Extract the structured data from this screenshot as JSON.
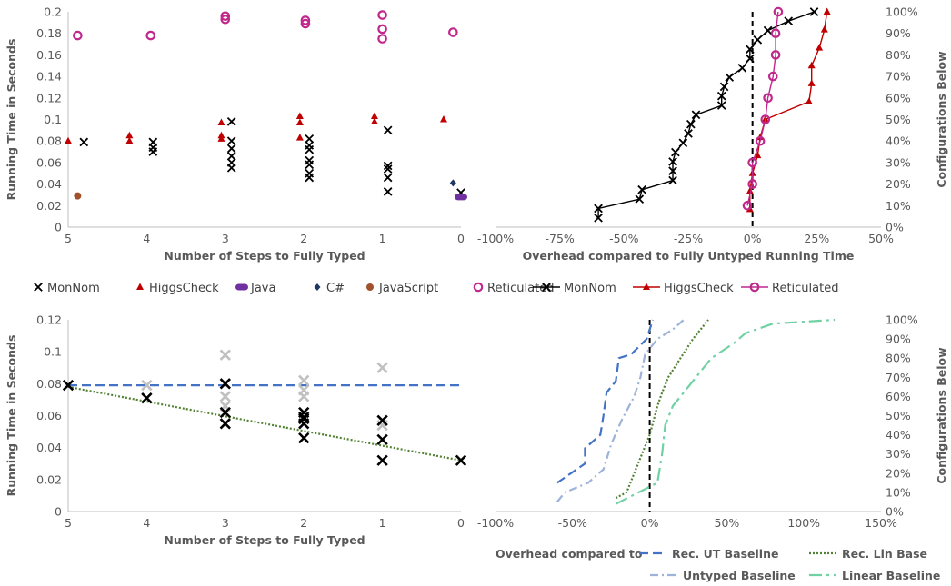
{
  "chart_data": [
    {
      "id": "scatter-top",
      "type": "scatter",
      "xlabel": "Number of Steps to Fully Typed",
      "ylabel": "Running Time in Seconds",
      "xlim": [
        5,
        0
      ],
      "ylim": [
        0,
        0.2
      ],
      "xticks": [
        "5",
        "4",
        "3",
        "2",
        "1",
        "0"
      ],
      "yticks": [
        "0",
        "0.02",
        "0.04",
        "0.06",
        "0.08",
        "0.1",
        "0.12",
        "0.14",
        "0.16",
        "0.18",
        "0.2"
      ],
      "legend_position": "bottom",
      "series": [
        {
          "name": "MonNom",
          "color": "#000000",
          "marker": "x",
          "points": [
            [
              4.8,
              0.079
            ],
            [
              3.92,
              0.079
            ],
            [
              3.92,
              0.074
            ],
            [
              3.92,
              0.07
            ],
            [
              2.92,
              0.098
            ],
            [
              2.92,
              0.08
            ],
            [
              2.92,
              0.073
            ],
            [
              2.92,
              0.066
            ],
            [
              2.92,
              0.06
            ],
            [
              2.92,
              0.055
            ],
            [
              1.93,
              0.082
            ],
            [
              1.93,
              0.076
            ],
            [
              1.93,
              0.072
            ],
            [
              1.93,
              0.062
            ],
            [
              1.93,
              0.058
            ],
            [
              1.93,
              0.05
            ],
            [
              1.93,
              0.046
            ],
            [
              0.93,
              0.09
            ],
            [
              0.93,
              0.057
            ],
            [
              0.93,
              0.054
            ],
            [
              0.93,
              0.046
            ],
            [
              0.93,
              0.033
            ],
            [
              0.0,
              0.032
            ]
          ]
        },
        {
          "name": "HiggsCheck",
          "color": "#c00000",
          "marker": "triangle",
          "points": [
            [
              5.0,
              0.08
            ],
            [
              4.22,
              0.085
            ],
            [
              4.22,
              0.08
            ],
            [
              3.05,
              0.097
            ],
            [
              3.05,
              0.085
            ],
            [
              3.05,
              0.082
            ],
            [
              2.05,
              0.103
            ],
            [
              2.05,
              0.097
            ],
            [
              2.05,
              0.083
            ],
            [
              1.1,
              0.103
            ],
            [
              1.1,
              0.098
            ],
            [
              0.22,
              0.1
            ]
          ]
        },
        {
          "name": "Java",
          "color": "#7030a0",
          "marker": "pill",
          "points": [
            [
              0.0,
              0.028
            ]
          ]
        },
        {
          "name": "C#",
          "color": "#203864",
          "marker": "diamond",
          "points": [
            [
              0.1,
              0.041
            ]
          ]
        },
        {
          "name": "JavaScript",
          "color": "#a0522d",
          "marker": "dot",
          "points": [
            [
              4.88,
              0.029
            ]
          ]
        },
        {
          "name": "Reticulated",
          "color": "#c0288c",
          "marker": "ring",
          "points": [
            [
              4.88,
              0.178
            ],
            [
              3.95,
              0.178
            ],
            [
              3.0,
              0.196
            ],
            [
              3.0,
              0.193
            ],
            [
              1.98,
              0.192
            ],
            [
              1.98,
              0.189
            ],
            [
              1.0,
              0.197
            ],
            [
              1.0,
              0.184
            ],
            [
              1.0,
              0.175
            ],
            [
              0.1,
              0.181
            ]
          ]
        }
      ]
    },
    {
      "id": "cdf-top",
      "type": "line",
      "xlabel": "Overhead compared to Fully Untyped Running Time",
      "ylabel": "Configurations Below",
      "xlim": [
        -100,
        50
      ],
      "ylim": [
        0,
        100
      ],
      "xticks": [
        "-100%",
        "-75%",
        "-50%",
        "-25%",
        "0%",
        "25%",
        "50%"
      ],
      "yticks": [
        "0%",
        "10%",
        "20%",
        "30%",
        "40%",
        "50%",
        "60%",
        "70%",
        "80%",
        "90%",
        "100%"
      ],
      "legend_position": "bottom",
      "series": [
        {
          "name": "MonNom",
          "color": "#000000",
          "marker": "x",
          "points": [
            [
              -60,
              4.3
            ],
            [
              -60,
              8.7
            ],
            [
              -44,
              13
            ],
            [
              -43,
              17.4
            ],
            [
              -31,
              21.7
            ],
            [
              -31,
              26.1
            ],
            [
              -31,
              30.4
            ],
            [
              -30,
              34.8
            ],
            [
              -27,
              39.1
            ],
            [
              -25,
              43.5
            ],
            [
              -24,
              47.8
            ],
            [
              -22,
              52.2
            ],
            [
              -12,
              56.5
            ],
            [
              -12,
              60.9
            ],
            [
              -11,
              65.2
            ],
            [
              -9,
              69.6
            ],
            [
              -4,
              73.9
            ],
            [
              -1,
              78.3
            ],
            [
              -1,
              82.6
            ],
            [
              2,
              87
            ],
            [
              6,
              91.3
            ],
            [
              14,
              95.7
            ],
            [
              24,
              100
            ]
          ]
        },
        {
          "name": "HiggsCheck",
          "color": "#c00000",
          "marker": "triangle",
          "points": [
            [
              -1,
              8.3
            ],
            [
              -1,
              16.7
            ],
            [
              0,
              25
            ],
            [
              2,
              33.3
            ],
            [
              3,
              41.7
            ],
            [
              5,
              50
            ],
            [
              22,
              58.3
            ],
            [
              23,
              66.7
            ],
            [
              23,
              75
            ],
            [
              26,
              83.3
            ],
            [
              28,
              91.7
            ],
            [
              29,
              100
            ]
          ]
        },
        {
          "name": "Reticulated",
          "color": "#c0288c",
          "marker": "ring",
          "points": [
            [
              -2,
              10
            ],
            [
              0,
              20
            ],
            [
              0,
              30
            ],
            [
              3,
              40
            ],
            [
              5,
              50
            ],
            [
              6,
              60
            ],
            [
              8,
              70
            ],
            [
              9,
              80
            ],
            [
              9,
              90
            ],
            [
              10,
              100
            ]
          ]
        }
      ]
    },
    {
      "id": "fit-bottom",
      "type": "scatter",
      "xlabel": "Number of Steps to Fully Typed",
      "ylabel": "Running Time in Seconds",
      "xlim": [
        5,
        0
      ],
      "ylim": [
        0,
        0.12
      ],
      "xticks": [
        "5",
        "4",
        "3",
        "2",
        "1",
        "0"
      ],
      "yticks": [
        "0",
        "0.02",
        "0.04",
        "0.06",
        "0.08",
        "0.1",
        "0.12"
      ],
      "series": [
        {
          "name": "",
          "color": "#c0c0c0",
          "marker": "x",
          "points": [
            [
              4,
              0.079
            ],
            [
              3,
              0.098
            ],
            [
              3,
              0.08
            ],
            [
              3,
              0.072
            ],
            [
              3,
              0.066
            ],
            [
              2,
              0.082
            ],
            [
              2,
              0.076
            ],
            [
              2,
              0.072
            ],
            [
              1,
              0.09
            ],
            [
              1,
              0.057
            ],
            [
              1,
              0.054
            ]
          ]
        },
        {
          "name": "",
          "color": "#000000",
          "marker": "x",
          "points": [
            [
              5,
              0.079
            ],
            [
              4,
              0.071
            ],
            [
              3,
              0.08
            ],
            [
              3,
              0.062
            ],
            [
              3,
              0.055
            ],
            [
              2,
              0.062
            ],
            [
              2,
              0.059
            ],
            [
              2,
              0.058
            ],
            [
              2,
              0.055
            ],
            [
              2,
              0.046
            ],
            [
              1,
              0.057
            ],
            [
              1,
              0.045
            ],
            [
              1,
              0.032
            ],
            [
              0,
              0.032
            ]
          ]
        }
      ],
      "lines": [
        {
          "name": "Rec. UT Baseline",
          "color": "#4472c4",
          "dash": "10,5",
          "from": [
            5,
            0.079
          ],
          "to": [
            0,
            0.079
          ]
        },
        {
          "name": "Rec. Lin Base",
          "color": "#548235",
          "dash": "2,2",
          "from": [
            5,
            0.078
          ],
          "to": [
            0,
            0.032
          ]
        }
      ]
    },
    {
      "id": "cdf-bottom",
      "type": "line",
      "xlabel": "",
      "ylabel": "Configurations Below",
      "xlim": [
        -100,
        150
      ],
      "ylim": [
        0,
        100
      ],
      "xticks": [
        "-100%",
        "-50%",
        "0%",
        "50%",
        "100%",
        "150%"
      ],
      "yticks": [
        "0%",
        "10%",
        "20%",
        "30%",
        "40%",
        "50%",
        "60%",
        "70%",
        "80%",
        "90%",
        "100%"
      ],
      "legend_title": "Overhead compared to",
      "series": [
        {
          "name": "Rec. UT Baseline",
          "color": "#4472c4",
          "dash": "10,5",
          "points": [
            [
              -60,
              15
            ],
            [
              -42,
              25
            ],
            [
              -42,
              33
            ],
            [
              -32,
              40
            ],
            [
              -30,
              50
            ],
            [
              -28,
              62
            ],
            [
              -22,
              68
            ],
            [
              -20,
              80
            ],
            [
              -12,
              82
            ],
            [
              -2,
              90
            ],
            [
              0,
              95
            ],
            [
              2,
              100
            ]
          ]
        },
        {
          "name": "Rec. Lin Base",
          "color": "#548235",
          "dash": "2,2",
          "points": [
            [
              -22,
              7
            ],
            [
              -15,
              10
            ],
            [
              -10,
              20
            ],
            [
              -5,
              30
            ],
            [
              0,
              40
            ],
            [
              5,
              55
            ],
            [
              8,
              62
            ],
            [
              12,
              70
            ],
            [
              20,
              80
            ],
            [
              28,
              90
            ],
            [
              33,
              95
            ],
            [
              38,
              100
            ]
          ]
        },
        {
          "name": "Untyped Baseline",
          "color": "#9db3d8",
          "dash": "9,4,2,4",
          "points": [
            [
              -60,
              5
            ],
            [
              -55,
              10
            ],
            [
              -40,
              15
            ],
            [
              -30,
              22
            ],
            [
              -25,
              35
            ],
            [
              -18,
              48
            ],
            [
              -10,
              60
            ],
            [
              -6,
              70
            ],
            [
              -3,
              82
            ],
            [
              5,
              90
            ],
            [
              15,
              95
            ],
            [
              22,
              100
            ]
          ]
        },
        {
          "name": "Linear Baseline",
          "color": "#70d1a4",
          "dash": "14,5,3,5",
          "points": [
            [
              -22,
              4
            ],
            [
              -12,
              8
            ],
            [
              5,
              15
            ],
            [
              8,
              30
            ],
            [
              10,
              45
            ],
            [
              15,
              55
            ],
            [
              22,
              62
            ],
            [
              40,
              80
            ],
            [
              55,
              88
            ],
            [
              62,
              93
            ],
            [
              80,
              98
            ],
            [
              120,
              100
            ]
          ]
        }
      ]
    }
  ]
}
